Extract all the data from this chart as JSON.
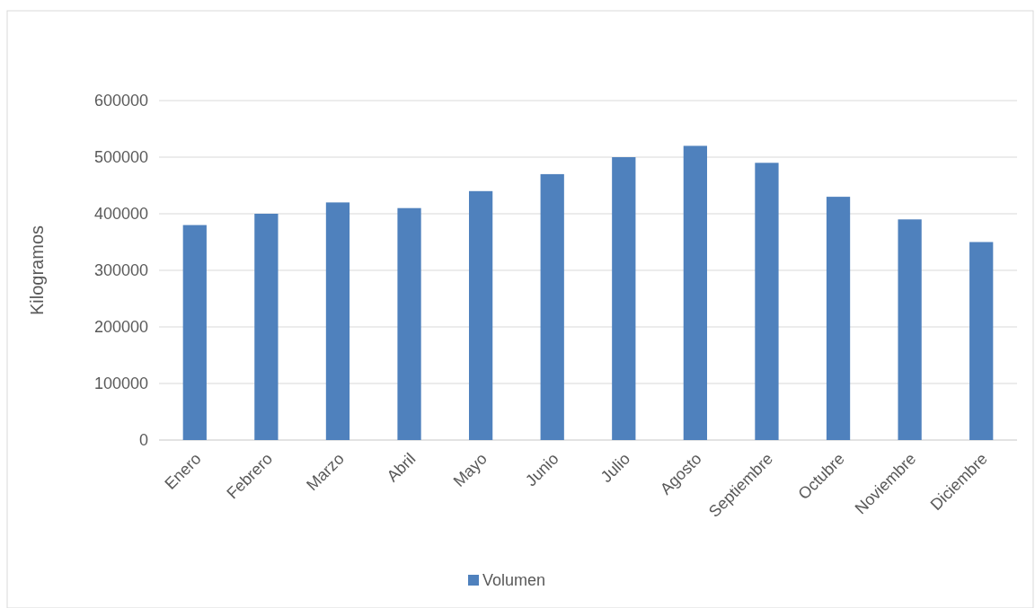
{
  "chart_data": {
    "type": "bar",
    "ylabel": "Kilogramos",
    "categories": [
      "Enero",
      "Febrero",
      "Marzo",
      "Abril",
      "Mayo",
      "Junio",
      "Julio",
      "Agosto",
      "Septiembre",
      "Octubre",
      "Noviembre",
      "Diciembre"
    ],
    "series": [
      {
        "name": "Volumen",
        "color": "#4f81bd",
        "values": [
          380000,
          400000,
          420000,
          410000,
          440000,
          470000,
          500000,
          520000,
          490000,
          430000,
          390000,
          350000
        ]
      }
    ],
    "ylim": [
      0,
      600000
    ],
    "yticks": [
      0,
      100000,
      200000,
      300000,
      400000,
      500000,
      600000
    ],
    "grid": "y",
    "legend": "bottom"
  }
}
